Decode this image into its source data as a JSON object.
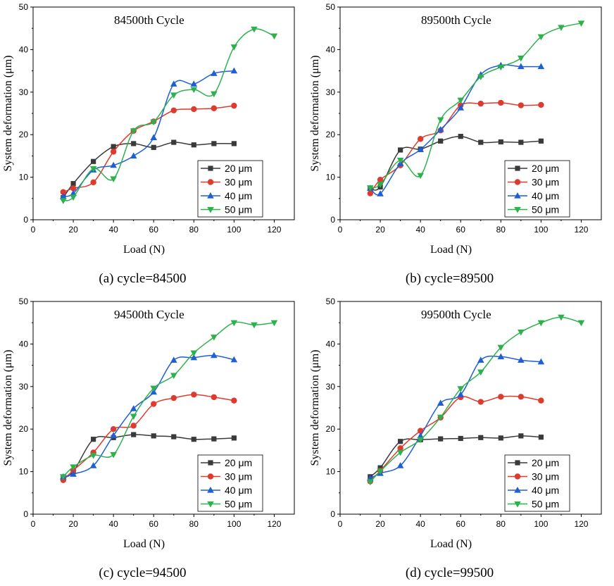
{
  "colors": {
    "s20": "#3a3a3a",
    "s30": "#e03a2f",
    "s40": "#1f5fd6",
    "s50": "#2bb24c"
  },
  "chart_data": [
    {
      "type": "line",
      "title": "84500th Cycle",
      "caption": "(a) cycle=84500",
      "xlabel": "Load (N)",
      "ylabel": "System deformation (μm)",
      "xlim": [
        0,
        130
      ],
      "ylim": [
        0,
        50
      ],
      "xticks": [
        "0",
        "20",
        "40",
        "60",
        "80",
        "100",
        "120"
      ],
      "yticks": [
        "0",
        "10",
        "20",
        "30",
        "40",
        "50"
      ],
      "legend_position": "bottom-right",
      "series": [
        {
          "name": "20 μm",
          "marker": "square",
          "color": "#3a3a3a",
          "x": [
            15,
            20,
            30,
            40,
            50,
            60,
            70,
            80,
            90,
            100
          ],
          "y": [
            5.2,
            8.5,
            13.7,
            17.2,
            17.9,
            17.0,
            18.2,
            17.6,
            17.9,
            17.9
          ]
        },
        {
          "name": "30 μm",
          "marker": "circle",
          "color": "#e03a2f",
          "x": [
            15,
            20,
            30,
            40,
            50,
            60,
            70,
            80,
            90,
            100
          ],
          "y": [
            6.5,
            7.4,
            8.8,
            16.0,
            20.9,
            23.1,
            25.7,
            26.0,
            26.2,
            26.8
          ]
        },
        {
          "name": "40 μm",
          "marker": "triangle-up",
          "color": "#1f5fd6",
          "x": [
            15,
            20,
            30,
            40,
            50,
            60,
            70,
            80,
            90,
            100
          ],
          "y": [
            5.5,
            6.2,
            11.7,
            12.8,
            15.0,
            19.3,
            31.9,
            31.9,
            34.4,
            35.0
          ]
        },
        {
          "name": "50 μm",
          "marker": "triangle-down",
          "color": "#2bb24c",
          "x": [
            15,
            20,
            30,
            40,
            50,
            60,
            70,
            80,
            90,
            100,
            110,
            120
          ],
          "y": [
            4.5,
            5.3,
            12.0,
            9.6,
            20.9,
            23.0,
            29.3,
            30.6,
            29.6,
            40.6,
            44.8,
            43.2
          ]
        }
      ]
    },
    {
      "type": "line",
      "title": "89500th Cycle",
      "caption": "(b) cycle=89500",
      "xlabel": "Load (N)",
      "ylabel": "System deformation (μm)",
      "xlim": [
        0,
        130
      ],
      "ylim": [
        0,
        50
      ],
      "xticks": [
        "0",
        "20",
        "40",
        "60",
        "80",
        "100",
        "120"
      ],
      "yticks": [
        "0",
        "10",
        "20",
        "30",
        "40",
        "50"
      ],
      "legend_position": "bottom-right",
      "series": [
        {
          "name": "20 μm",
          "marker": "square",
          "color": "#3a3a3a",
          "x": [
            15,
            20,
            30,
            40,
            50,
            60,
            70,
            80,
            90,
            100
          ],
          "y": [
            7.4,
            7.7,
            16.4,
            16.6,
            18.5,
            19.6,
            18.2,
            18.3,
            18.2,
            18.5
          ]
        },
        {
          "name": "30 μm",
          "marker": "circle",
          "color": "#e03a2f",
          "x": [
            15,
            20,
            30,
            40,
            50,
            60,
            70,
            80,
            90,
            100
          ],
          "y": [
            6.2,
            9.4,
            12.8,
            19.0,
            21.0,
            26.9,
            27.3,
            27.5,
            26.9,
            27.0
          ]
        },
        {
          "name": "40 μm",
          "marker": "triangle-up",
          "color": "#1f5fd6",
          "x": [
            15,
            20,
            30,
            40,
            50,
            60,
            70,
            80,
            90,
            100
          ],
          "y": [
            7.4,
            6.1,
            13.2,
            16.5,
            21.2,
            26.3,
            34.1,
            36.3,
            36.0,
            36.0
          ]
        },
        {
          "name": "50 μm",
          "marker": "triangle-down",
          "color": "#2bb24c",
          "x": [
            15,
            20,
            30,
            40,
            50,
            60,
            70,
            80,
            90,
            100,
            110,
            120
          ],
          "y": [
            7.5,
            8.3,
            14.0,
            10.4,
            23.5,
            28.1,
            33.6,
            35.9,
            38.0,
            43.0,
            45.2,
            46.2
          ]
        }
      ]
    },
    {
      "type": "line",
      "title": "94500th Cycle",
      "caption": "(c) cycle=94500",
      "xlabel": "Load (N)",
      "ylabel": "System deformation (μm)",
      "xlim": [
        0,
        130
      ],
      "ylim": [
        0,
        50
      ],
      "xticks": [
        "0",
        "20",
        "40",
        "60",
        "80",
        "100",
        "120"
      ],
      "yticks": [
        "0",
        "10",
        "20",
        "30",
        "40",
        "50"
      ],
      "legend_position": "bottom-right",
      "series": [
        {
          "name": "20 μm",
          "marker": "square",
          "color": "#3a3a3a",
          "x": [
            15,
            20,
            30,
            40,
            50,
            60,
            70,
            80,
            90,
            100
          ],
          "y": [
            8.6,
            10.0,
            17.6,
            18.0,
            18.7,
            18.4,
            18.2,
            17.6,
            17.7,
            17.9
          ]
        },
        {
          "name": "30 μm",
          "marker": "circle",
          "color": "#e03a2f",
          "x": [
            15,
            20,
            30,
            40,
            50,
            60,
            70,
            80,
            90,
            100
          ],
          "y": [
            8.0,
            10.3,
            14.5,
            20.0,
            20.8,
            25.9,
            27.3,
            28.1,
            27.5,
            26.7
          ]
        },
        {
          "name": "40 μm",
          "marker": "triangle-up",
          "color": "#1f5fd6",
          "x": [
            15,
            20,
            30,
            40,
            50,
            60,
            70,
            80,
            90,
            100
          ],
          "y": [
            8.8,
            9.4,
            11.4,
            18.5,
            24.8,
            28.7,
            36.2,
            36.8,
            37.3,
            36.3
          ]
        },
        {
          "name": "50 μm",
          "marker": "triangle-down",
          "color": "#2bb24c",
          "x": [
            15,
            20,
            30,
            40,
            50,
            60,
            70,
            80,
            90,
            100,
            110,
            120
          ],
          "y": [
            8.8,
            11.1,
            13.8,
            14.0,
            23.0,
            29.6,
            32.6,
            37.9,
            41.6,
            45.0,
            44.5,
            45.0
          ]
        }
      ]
    },
    {
      "type": "line",
      "title": "99500th Cycle",
      "caption": "(d) cycle=99500",
      "xlabel": "Load (N)",
      "ylabel": "System deformation (μm)",
      "xlim": [
        0,
        130
      ],
      "ylim": [
        0,
        50
      ],
      "xticks": [
        "0",
        "20",
        "40",
        "60",
        "80",
        "100",
        "120"
      ],
      "yticks": [
        "0",
        "10",
        "20",
        "30",
        "40",
        "50"
      ],
      "legend_position": "bottom-right",
      "series": [
        {
          "name": "20 μm",
          "marker": "square",
          "color": "#3a3a3a",
          "x": [
            15,
            20,
            30,
            40,
            50,
            60,
            70,
            80,
            90,
            100
          ],
          "y": [
            8.8,
            10.9,
            17.1,
            17.5,
            17.7,
            17.8,
            18.0,
            17.9,
            18.4,
            18.1
          ]
        },
        {
          "name": "30 μm",
          "marker": "circle",
          "color": "#e03a2f",
          "x": [
            15,
            20,
            30,
            40,
            50,
            60,
            70,
            80,
            90,
            100
          ],
          "y": [
            7.7,
            10.2,
            15.5,
            19.6,
            22.7,
            27.5,
            26.4,
            27.6,
            27.6,
            26.7
          ]
        },
        {
          "name": "40 μm",
          "marker": "triangle-up",
          "color": "#1f5fd6",
          "x": [
            15,
            20,
            30,
            40,
            50,
            60,
            70,
            80,
            90,
            100
          ],
          "y": [
            8.4,
            9.6,
            11.4,
            18.4,
            26.1,
            28.1,
            36.2,
            37.0,
            36.2,
            35.8
          ]
        },
        {
          "name": "50 μm",
          "marker": "triangle-down",
          "color": "#2bb24c",
          "x": [
            15,
            20,
            30,
            40,
            50,
            60,
            70,
            80,
            90,
            100,
            110,
            120
          ],
          "y": [
            7.6,
            10.1,
            14.5,
            17.5,
            22.8,
            29.5,
            33.4,
            39.2,
            42.8,
            45.0,
            46.3,
            45.0
          ]
        }
      ]
    }
  ]
}
